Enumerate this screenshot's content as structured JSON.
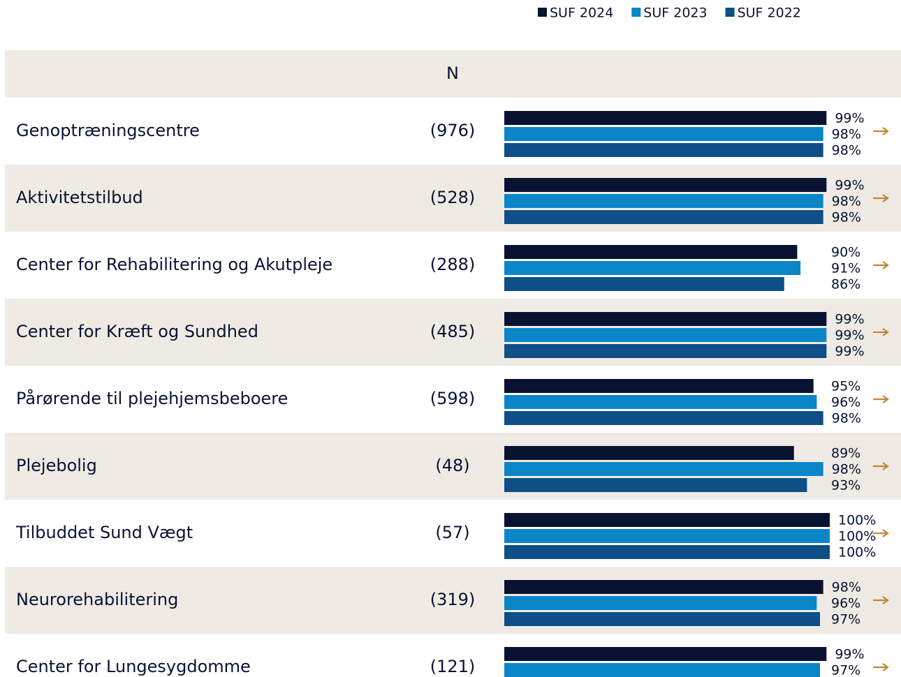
{
  "chart_data": {
    "type": "bar",
    "orientation": "horizontal",
    "n_header": "N",
    "categories": [
      "Genoptræningscentre",
      "Aktivitetstilbud",
      "Center for Rehabilitering og Akutpleje",
      "Center for Kræft og Sundhed",
      "Pårørende til plejehjemsbeboere",
      "Plejebolig",
      "Tilbuddet Sund Vægt",
      "Neurorehabilitering",
      "Center for Lungesygdomme"
    ],
    "n_labels": [
      "(976)",
      "(528)",
      "(288)",
      "(485)",
      "(598)",
      "(48)",
      "(57)",
      "(319)",
      "(121)"
    ],
    "xlim": [
      0,
      100
    ],
    "series": [
      {
        "name": "SUF 2024",
        "color": "#0a1232",
        "values": [
          99,
          99,
          90,
          99,
          95,
          89,
          100,
          98,
          99
        ],
        "value_labels": [
          "99%",
          "99%",
          "90%",
          "99%",
          "95%",
          "89%",
          "100%",
          "98%",
          "99%"
        ]
      },
      {
        "name": "SUF 2023",
        "color": "#0a85c7",
        "values": [
          98,
          98,
          91,
          99,
          96,
          98,
          100,
          96,
          97
        ],
        "value_labels": [
          "98%",
          "98%",
          "91%",
          "99%",
          "96%",
          "98%",
          "100%",
          "96%",
          "97%"
        ]
      },
      {
        "name": "SUF 2022",
        "color": "#0d4f86",
        "values": [
          98,
          98,
          86,
          99,
          98,
          93,
          100,
          97,
          null
        ],
        "value_labels": [
          "98%",
          "98%",
          "86%",
          "99%",
          "98%",
          "93%",
          "100%",
          "97%",
          null
        ]
      }
    ]
  }
}
